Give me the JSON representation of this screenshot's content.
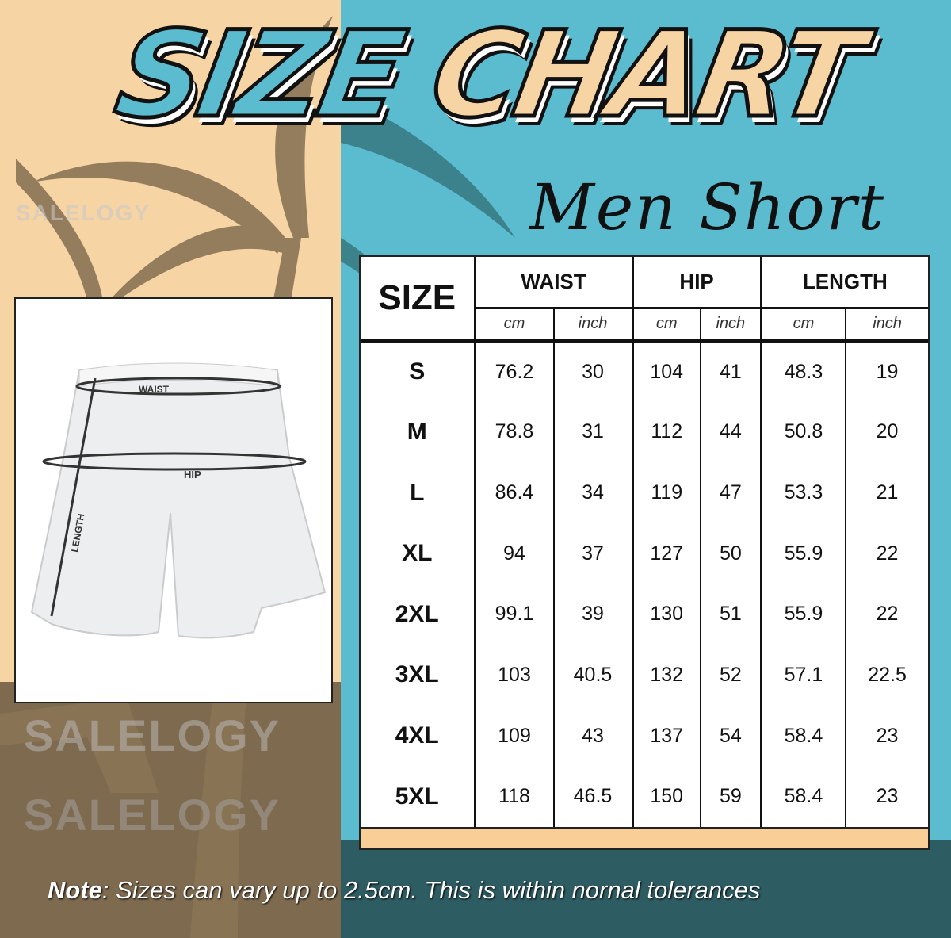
{
  "title": {
    "word1": "SIZE",
    "word2": "CHART"
  },
  "subtitle": "Men Short",
  "watermark": "SALELOGY",
  "diagram": {
    "waist_label": "WAIST",
    "hip_label": "HIP",
    "length_label": "LENGTH"
  },
  "table": {
    "size_header": "SIZE",
    "groups": [
      "WAIST",
      "HIP",
      "LENGTH"
    ],
    "units": [
      "cm",
      "inch",
      "cm",
      "inch",
      "cm",
      "inch"
    ],
    "rows": [
      {
        "size": "S",
        "values": [
          "76.2",
          "30",
          "104",
          "41",
          "48.3",
          "19"
        ]
      },
      {
        "size": "M",
        "values": [
          "78.8",
          "31",
          "112",
          "44",
          "50.8",
          "20"
        ]
      },
      {
        "size": "L",
        "values": [
          "86.4",
          "34",
          "119",
          "47",
          "53.3",
          "21"
        ]
      },
      {
        "size": "XL",
        "values": [
          "94",
          "37",
          "127",
          "50",
          "55.9",
          "22"
        ]
      },
      {
        "size": "2XL",
        "values": [
          "99.1",
          "39",
          "130",
          "51",
          "55.9",
          "22"
        ]
      },
      {
        "size": "3XL",
        "values": [
          "103",
          "40.5",
          "132",
          "52",
          "57.1",
          "22.5"
        ]
      },
      {
        "size": "4XL",
        "values": [
          "109",
          "43",
          "137",
          "54",
          "58.4",
          "23"
        ]
      },
      {
        "size": "5XL",
        "values": [
          "118",
          "46.5",
          "150",
          "59",
          "58.4",
          "23"
        ]
      }
    ]
  },
  "note": {
    "label": "Note",
    "text": ": Sizes can vary up to 2.5cm. This is within nornal tolerances"
  },
  "colors": {
    "beige": "#f7d4a3",
    "brown": "#7e6a4f",
    "teal": "#5bbcd0",
    "dark_teal": "#2e5c63"
  }
}
